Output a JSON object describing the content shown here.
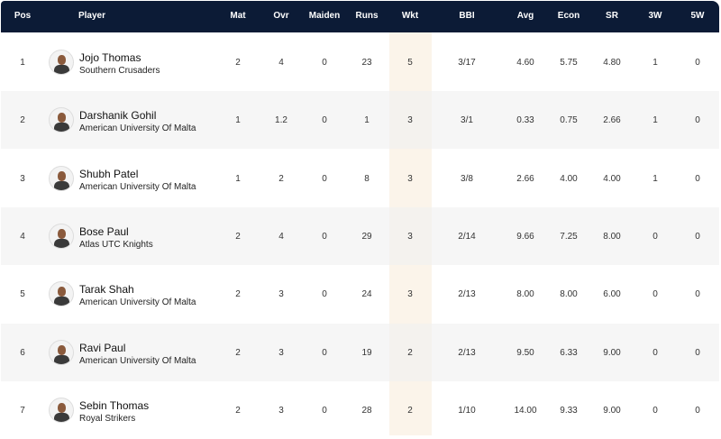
{
  "columns": [
    "Pos",
    "Player",
    "Mat",
    "Ovr",
    "Maiden",
    "Runs",
    "Wkt",
    "BBI",
    "Avg",
    "Econ",
    "SR",
    "3W",
    "5W"
  ],
  "colors": {
    "header_bg": "#0c1b36",
    "highlight_col": "#fbf4ea",
    "alt_row": "#f7f7f7"
  },
  "rows": [
    {
      "pos": "1",
      "name": "Jojo Thomas",
      "team": "Southern Crusaders",
      "mat": "2",
      "ovr": "4",
      "maiden": "0",
      "runs": "23",
      "wkt": "5",
      "bbi": "3/17",
      "avg": "4.60",
      "econ": "5.75",
      "sr": "4.80",
      "w3": "1",
      "w5": "0"
    },
    {
      "pos": "2",
      "name": "Darshanik Gohil",
      "team": "American University Of Malta",
      "mat": "1",
      "ovr": "1.2",
      "maiden": "0",
      "runs": "1",
      "wkt": "3",
      "bbi": "3/1",
      "avg": "0.33",
      "econ": "0.75",
      "sr": "2.66",
      "w3": "1",
      "w5": "0"
    },
    {
      "pos": "3",
      "name": "Shubh Patel",
      "team": "American University Of Malta",
      "mat": "1",
      "ovr": "2",
      "maiden": "0",
      "runs": "8",
      "wkt": "3",
      "bbi": "3/8",
      "avg": "2.66",
      "econ": "4.00",
      "sr": "4.00",
      "w3": "1",
      "w5": "0"
    },
    {
      "pos": "4",
      "name": "Bose Paul",
      "team": "Atlas UTC Knights",
      "mat": "2",
      "ovr": "4",
      "maiden": "0",
      "runs": "29",
      "wkt": "3",
      "bbi": "2/14",
      "avg": "9.66",
      "econ": "7.25",
      "sr": "8.00",
      "w3": "0",
      "w5": "0"
    },
    {
      "pos": "5",
      "name": "Tarak Shah",
      "team": "American University Of Malta",
      "mat": "2",
      "ovr": "3",
      "maiden": "0",
      "runs": "24",
      "wkt": "3",
      "bbi": "2/13",
      "avg": "8.00",
      "econ": "8.00",
      "sr": "6.00",
      "w3": "0",
      "w5": "0"
    },
    {
      "pos": "6",
      "name": "Ravi Paul",
      "team": "American University Of Malta",
      "mat": "2",
      "ovr": "3",
      "maiden": "0",
      "runs": "19",
      "wkt": "2",
      "bbi": "2/13",
      "avg": "9.50",
      "econ": "6.33",
      "sr": "9.00",
      "w3": "0",
      "w5": "0"
    },
    {
      "pos": "7",
      "name": "Sebin Thomas",
      "team": "Royal Strikers",
      "mat": "2",
      "ovr": "3",
      "maiden": "0",
      "runs": "28",
      "wkt": "2",
      "bbi": "1/10",
      "avg": "14.00",
      "econ": "9.33",
      "sr": "9.00",
      "w3": "0",
      "w5": "0"
    }
  ]
}
